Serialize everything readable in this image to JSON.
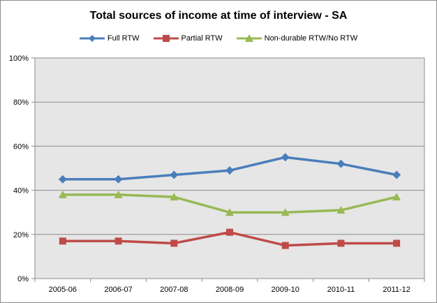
{
  "chart_data": {
    "type": "line",
    "title": "Total sources of income at time of interview - SA",
    "categories": [
      "2005-06",
      "2006-07",
      "2007-08",
      "2008-09",
      "2009-10",
      "2010-11",
      "2011-12"
    ],
    "series": [
      {
        "name": "Full RTW",
        "color": "#4a7ebb",
        "marker": "diamond",
        "values": [
          45,
          45,
          47,
          49,
          55,
          52,
          47
        ]
      },
      {
        "name": "Partial RTW",
        "color": "#be4b48",
        "marker": "square",
        "values": [
          17,
          17,
          16,
          21,
          15,
          16,
          16
        ]
      },
      {
        "name": "Non-durable RTW/No RTW",
        "color": "#98b954",
        "marker": "triangle",
        "values": [
          38,
          38,
          37,
          30,
          30,
          31,
          37
        ]
      }
    ],
    "yticks": [
      "0%",
      "20%",
      "40%",
      "60%",
      "80%",
      "100%"
    ],
    "ylim": [
      0,
      100
    ],
    "grid": true,
    "legend_position": "top",
    "plot_background": "#e6e6e6"
  }
}
